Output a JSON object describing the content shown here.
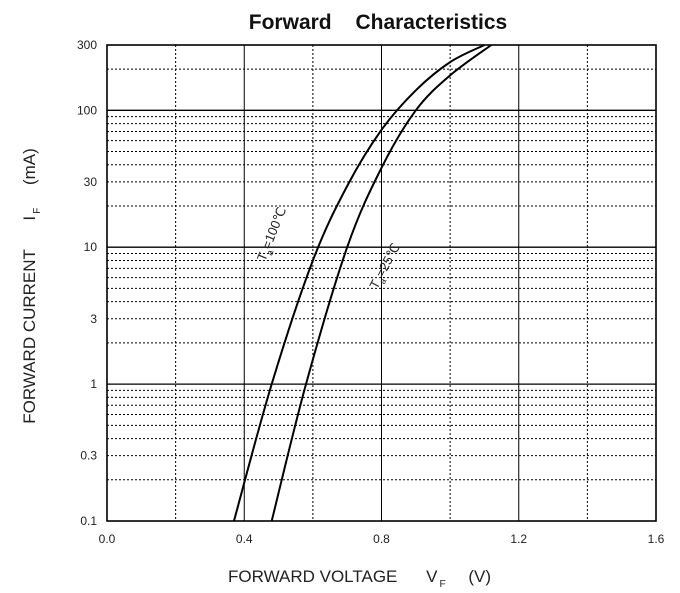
{
  "chart_data": {
    "type": "line",
    "title": "Forward Characteristics",
    "xlabel": "FORWARD VOLTAGE",
    "xlabel_symbol": "V",
    "xlabel_subscript": "F",
    "xlabel_unit": "(V)",
    "ylabel": "FORWARD CURRENT",
    "ylabel_symbol": "I",
    "ylabel_subscript": "F",
    "ylabel_unit": "(mA)",
    "xlim": [
      0.0,
      1.6
    ],
    "ylim": [
      0.1,
      300
    ],
    "yscale": "log",
    "grid": true,
    "x_ticks": [
      "0.0",
      "0.4",
      "0.8",
      "1.2",
      "1.6"
    ],
    "y_ticks": [
      "0.1",
      "0.3",
      "1",
      "3",
      "10",
      "30",
      "100",
      "300"
    ],
    "series": [
      {
        "name": "Ta=100℃",
        "label_main": "T",
        "label_sub": "a",
        "label_rest": "=100℃",
        "x": [
          0.37,
          0.48,
          0.6,
          0.7,
          0.8,
          0.9,
          1.0,
          1.1
        ],
        "y": [
          0.1,
          1,
          8,
          28,
          72,
          140,
          225,
          300
        ]
      },
      {
        "name": "Ta=25℃",
        "label_main": "T",
        "label_sub": "a",
        "label_rest": "=25℃",
        "x": [
          0.48,
          0.58,
          0.7,
          0.8,
          0.9,
          1.0,
          1.12
        ],
        "y": [
          0.1,
          1,
          10,
          38,
          100,
          180,
          300
        ]
      }
    ]
  }
}
